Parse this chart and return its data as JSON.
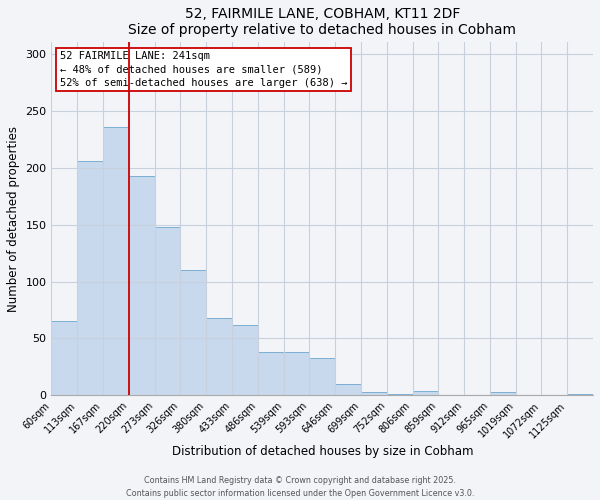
{
  "title": "52, FAIRMILE LANE, COBHAM, KT11 2DF",
  "subtitle": "Size of property relative to detached houses in Cobham",
  "xlabel": "Distribution of detached houses by size in Cobham",
  "ylabel": "Number of detached properties",
  "bar_labels": [
    "60sqm",
    "113sqm",
    "167sqm",
    "220sqm",
    "273sqm",
    "326sqm",
    "380sqm",
    "433sqm",
    "486sqm",
    "539sqm",
    "593sqm",
    "646sqm",
    "699sqm",
    "752sqm",
    "806sqm",
    "859sqm",
    "912sqm",
    "965sqm",
    "1019sqm",
    "1072sqm",
    "1125sqm"
  ],
  "bar_values": [
    65,
    206,
    236,
    193,
    148,
    110,
    68,
    62,
    38,
    38,
    33,
    10,
    3,
    1,
    4,
    0,
    0,
    3,
    0,
    0,
    1
  ],
  "bar_color": "#c8d9ed",
  "bar_edgecolor": "#7bafd4",
  "vline_color": "#cc0000",
  "vline_pos": 3,
  "annotation_text": "52 FAIRMILE LANE: 241sqm\n← 48% of detached houses are smaller (589)\n52% of semi-detached houses are larger (638) →",
  "ylim": [
    0,
    310
  ],
  "yticks": [
    0,
    50,
    100,
    150,
    200,
    250,
    300
  ],
  "footer1": "Contains HM Land Registry data © Crown copyright and database right 2025.",
  "footer2": "Contains public sector information licensed under the Open Government Licence v3.0.",
  "bg_color": "#f2f4f8",
  "grid_color": "#c8d0de"
}
